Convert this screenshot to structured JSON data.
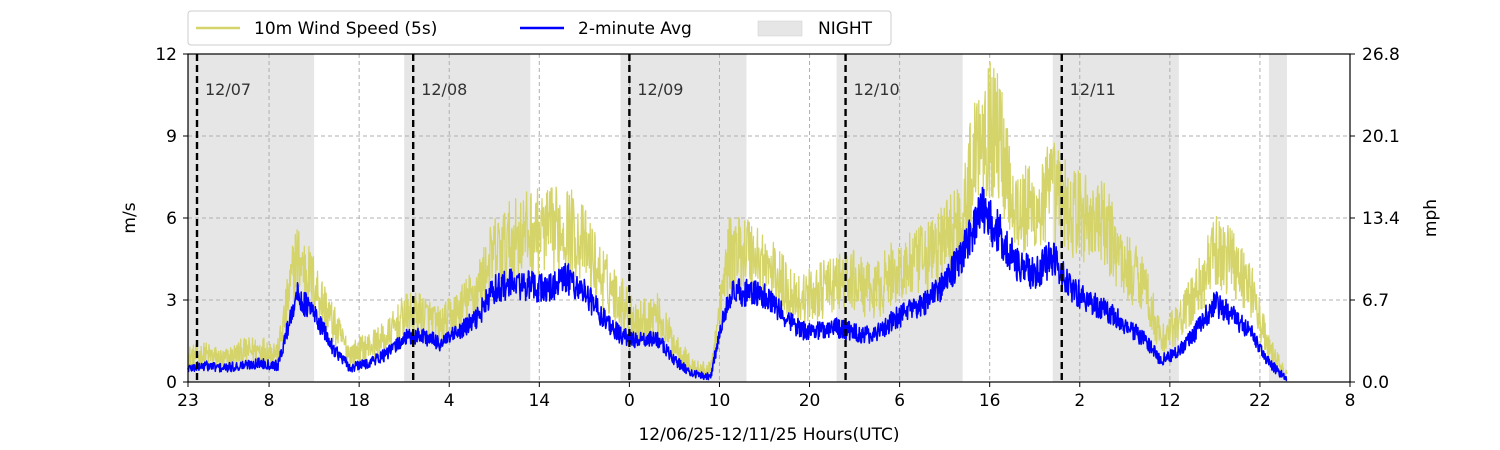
{
  "chart_data": {
    "type": "line",
    "title": "",
    "xlabel": "12/06/25-12/11/25  Hours(UTC)",
    "ylabel": "m/s",
    "ylabel_right": "mph",
    "x_unit": "hours since 12/06/25 23:00 UTC",
    "xlim": [
      0,
      129
    ],
    "ylim": [
      0,
      12
    ],
    "ylim_right": [
      0.0,
      26.8
    ],
    "x_ticks": [
      0,
      9,
      19,
      29,
      39,
      49,
      59,
      69,
      79,
      89,
      99,
      109,
      119,
      129
    ],
    "x_tick_labels": [
      "23",
      "8",
      "18",
      "4",
      "14",
      "0",
      "10",
      "20",
      "6",
      "16",
      "2",
      "12",
      "22",
      "8"
    ],
    "y_ticks": [
      0,
      3,
      6,
      9,
      12
    ],
    "y_tick_labels": [
      "0",
      "3",
      "6",
      "9",
      "12"
    ],
    "y_right_tick_labels": [
      "0.0",
      "6.7",
      "13.4",
      "20.1",
      "26.8"
    ],
    "grid": true,
    "legend_position": "top-left, above plot",
    "legend": [
      {
        "label": "10m Wind Speed (5s)",
        "color": "#d4d46a",
        "kind": "line"
      },
      {
        "label": "2-minute Avg",
        "color": "#0000ff",
        "kind": "line"
      },
      {
        "label": "NIGHT",
        "color": "#e6e6e6",
        "kind": "patch"
      }
    ],
    "night_periods": [
      [
        0,
        14
      ],
      [
        24,
        38
      ],
      [
        48,
        62
      ],
      [
        72,
        86
      ],
      [
        96,
        110
      ],
      [
        120,
        122
      ]
    ],
    "day_markers": [
      {
        "x": 1,
        "label": "12/07"
      },
      {
        "x": 25,
        "label": "12/08"
      },
      {
        "x": 49,
        "label": "12/09"
      },
      {
        "x": 73,
        "label": "12/10"
      },
      {
        "x": 97,
        "label": "12/11"
      }
    ],
    "series": [
      {
        "name": "10m Wind Speed (5s)",
        "color": "#d4d46a",
        "x": [
          0,
          2,
          4,
          6,
          8,
          10,
          12,
          14,
          16,
          18,
          20,
          22,
          24,
          26,
          28,
          30,
          32,
          34,
          36,
          38,
          40,
          42,
          44,
          46,
          48,
          50,
          52,
          54,
          56,
          58,
          60,
          62,
          64,
          66,
          68,
          70,
          72,
          74,
          76,
          78,
          80,
          82,
          84,
          86,
          88,
          90,
          92,
          94,
          96,
          98,
          100,
          102,
          104,
          106,
          108,
          110,
          112,
          114,
          116,
          118,
          120,
          122
        ],
        "y": [
          0.9,
          1.0,
          0.8,
          1.1,
          1.2,
          1.1,
          4.6,
          3.6,
          2.2,
          1.0,
          1.3,
          1.6,
          2.4,
          2.5,
          2.0,
          2.6,
          3.3,
          4.7,
          5.2,
          5.5,
          5.5,
          5.7,
          5.0,
          3.8,
          3.0,
          2.2,
          2.5,
          1.4,
          0.5,
          0.4,
          4.6,
          4.9,
          4.3,
          3.6,
          3.0,
          3.3,
          3.6,
          3.7,
          3.2,
          3.9,
          4.2,
          4.5,
          5.2,
          6.0,
          9.5,
          9.0,
          6.3,
          6.2,
          7.0,
          6.2,
          6.0,
          5.6,
          4.2,
          3.8,
          1.5,
          2.2,
          3.3,
          4.7,
          4.5,
          3.4,
          1.2,
          0.2
        ]
      },
      {
        "name": "2-minute Avg",
        "color": "#0000ff",
        "x": [
          0,
          2,
          4,
          6,
          8,
          10,
          12,
          14,
          16,
          18,
          20,
          22,
          24,
          26,
          28,
          30,
          32,
          34,
          36,
          38,
          40,
          42,
          44,
          46,
          48,
          50,
          52,
          54,
          56,
          58,
          60,
          62,
          64,
          66,
          68,
          70,
          72,
          74,
          76,
          78,
          80,
          82,
          84,
          86,
          88,
          90,
          92,
          94,
          96,
          98,
          100,
          102,
          104,
          106,
          108,
          110,
          112,
          114,
          116,
          118,
          120,
          122
        ],
        "y": [
          0.5,
          0.6,
          0.5,
          0.6,
          0.7,
          0.6,
          3.2,
          2.5,
          1.3,
          0.5,
          0.7,
          1.0,
          1.6,
          1.7,
          1.4,
          1.8,
          2.3,
          3.4,
          3.6,
          3.5,
          3.4,
          3.8,
          3.3,
          2.4,
          1.7,
          1.5,
          1.6,
          0.8,
          0.3,
          0.2,
          3.2,
          3.3,
          3.1,
          2.5,
          1.9,
          1.9,
          2.0,
          1.8,
          1.7,
          2.2,
          2.6,
          2.9,
          3.6,
          4.7,
          6.3,
          5.5,
          4.3,
          3.9,
          4.6,
          3.4,
          3.0,
          2.6,
          2.1,
          1.6,
          0.8,
          1.1,
          1.9,
          2.9,
          2.4,
          1.8,
          0.7,
          0.1
        ]
      }
    ]
  }
}
